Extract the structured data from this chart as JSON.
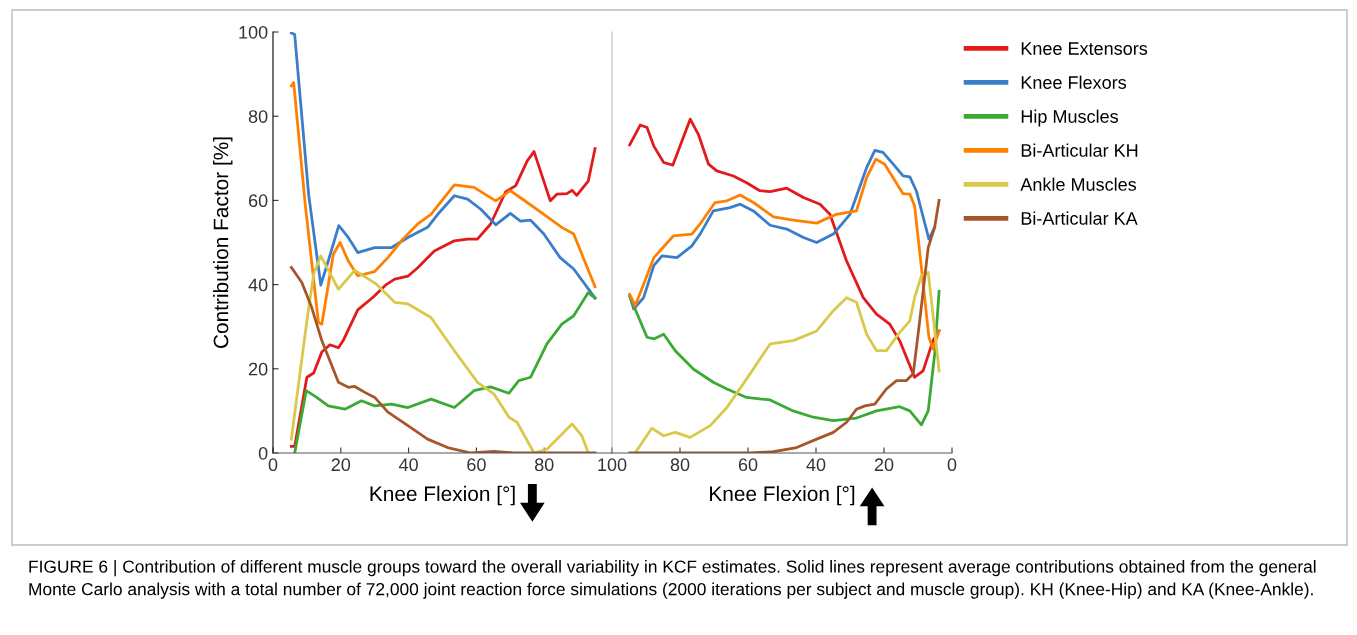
{
  "chart_data": [
    {
      "type": "line",
      "ylabel": "Contribution Factor [%]",
      "xlabel": "Knee Flexion [°]",
      "xlim": [
        0,
        100
      ],
      "xticks": [
        0,
        20,
        40,
        60,
        80,
        100
      ],
      "ylim": [
        0,
        100
      ],
      "yticks": [
        0,
        20,
        40,
        60,
        80,
        100
      ],
      "grid": false,
      "legend": "right",
      "marker": "none",
      "line_style": "solid",
      "annotations": [
        "FIGURE 6 | Contribution of different muscle groups toward the overall variability in KCF estimates. Solid lines represent average contributions obtained from the general Monte Carlo analysis with a total number of 72,000 joint reaction force simulations (2000 iterations per subject and muscle group). KH (Knee-Hip) and KA (Knee-Ankle)."
      ],
      "series": [
        {
          "name": "Knee Extensors",
          "color": "#e31a1c",
          "x": [
            5.4,
            6.4,
            10,
            12,
            14.4,
            16.8,
            19.3,
            20.7,
            25,
            29.5,
            33.4,
            35.9,
            39.8,
            42.7,
            47.6,
            53.5,
            57.4,
            60.3,
            64.2,
            68.6,
            71.6,
            75,
            77,
            81.8,
            83.8,
            86.7,
            88.2,
            89.6,
            93,
            95
          ],
          "values": [
            1.6,
            1.6,
            18,
            19,
            24,
            25.7,
            25,
            26.7,
            34,
            37,
            40,
            41.3,
            42,
            44,
            48,
            50.4,
            50.8,
            50.8,
            54.4,
            62,
            63.5,
            69.4,
            71.6,
            59.9,
            61.5,
            61.6,
            62.4,
            61.2,
            64.6,
            72.3
          ]
        },
        {
          "name": "Knee Flexors",
          "color": "#3a7dc9",
          "x": [
            5.4,
            6.4,
            10.5,
            14.1,
            16.3,
            19.4,
            22.2,
            25,
            30,
            35,
            39.8,
            45.6,
            48.6,
            53.5,
            57.4,
            61.3,
            65.7,
            70,
            73,
            76,
            79.9,
            84.7,
            88.7,
            95
          ],
          "values": [
            99.8,
            99.4,
            61.5,
            39.9,
            45.6,
            54,
            51.2,
            47.6,
            48.8,
            48.8,
            51.2,
            53.6,
            56.7,
            61.1,
            60.3,
            57.9,
            54.2,
            56.9,
            55.1,
            55.3,
            52,
            46.4,
            43.7,
            36.8
          ]
        },
        {
          "name": "Hip Muscles",
          "color": "#3aaa35",
          "x": [
            6.4,
            9.8,
            12.9,
            16.3,
            21.2,
            26.1,
            30,
            35,
            39.8,
            46.6,
            53.5,
            59.3,
            64.2,
            69.6,
            72.5,
            76,
            80.8,
            85.2,
            88.7,
            93,
            95
          ],
          "values": [
            0,
            14.8,
            13.2,
            11.2,
            10.4,
            12.4,
            11.2,
            11.6,
            10.8,
            12.8,
            10.8,
            14.8,
            15.7,
            14.2,
            17.2,
            18,
            25.9,
            30.6,
            32.6,
            38.1,
            36.8
          ]
        },
        {
          "name": "Bi-Articular KH",
          "color": "#ff8000",
          "x": [
            5.4,
            6.1,
            9.5,
            13.4,
            14.4,
            17.8,
            19.8,
            22.2,
            25,
            30,
            33.9,
            38.3,
            42.7,
            46.6,
            53.5,
            59.3,
            65.7,
            70,
            75,
            79.9,
            85.2,
            88.7,
            95
          ],
          "values": [
            87.2,
            88,
            59.1,
            31,
            30.6,
            47.2,
            50,
            45.6,
            42.1,
            43.1,
            46.4,
            50.8,
            54.4,
            56.7,
            63.7,
            63.1,
            59.9,
            62.3,
            59.5,
            56.7,
            53.6,
            52,
            39.5
          ]
        },
        {
          "name": "Ankle Muscles",
          "color": "#d9c94a",
          "x": [
            5.4,
            10,
            12,
            14.1,
            19.3,
            24.1,
            30.5,
            35.9,
            39.8,
            46.6,
            53.5,
            60.3,
            65.2,
            69.6,
            72,
            77,
            80.8,
            88.2,
            91.1,
            93
          ],
          "values": [
            3.3,
            31.4,
            42.5,
            46.8,
            38.9,
            43.4,
            40.1,
            35.8,
            35.4,
            32.2,
            24.3,
            16.8,
            14,
            8.5,
            7.3,
            0,
            0.9,
            6.9,
            4.1,
            0
          ]
        },
        {
          "name": "Bi-Articular KA",
          "color": "#a65628",
          "x": [
            5.4,
            8.5,
            11.4,
            14.4,
            19.3,
            22.2,
            24.1,
            27.1,
            30,
            33.9,
            39.8,
            45.6,
            51.5,
            58.4,
            65.2,
            71,
            95
          ],
          "values": [
            44.1,
            40.5,
            34.6,
            26.7,
            16.8,
            15.6,
            15.8,
            14.4,
            13.2,
            9.7,
            6.5,
            3.3,
            1.3,
            0,
            0.4,
            0,
            0
          ]
        }
      ]
    },
    {
      "type": "line",
      "xlabel": "Knee Flexion [°]",
      "xlim": [
        100,
        0
      ],
      "xticks": [
        {
          "value": 100,
          "label": null
        },
        80,
        60,
        40,
        20,
        0
      ],
      "ylim": [
        0,
        100
      ],
      "tick_labels": "x",
      "grid": false,
      "marker": "none",
      "line_style": "solid",
      "series": [
        {
          "color": "#e31a1c",
          "x": [
            94.8,
            91.7,
            89.7,
            87.7,
            84.8,
            82.1,
            77,
            74.6,
            71.6,
            69.2,
            64.3,
            60.4,
            56.5,
            53.5,
            48.6,
            43.7,
            38.8,
            35.9,
            31,
            26.1,
            22.2,
            18.3,
            15.4,
            11,
            8.5,
            5.6,
            3.8
          ],
          "values": [
            73.2,
            77.9,
            77.3,
            72.9,
            69,
            68.4,
            79.3,
            75.7,
            68.6,
            67,
            65.8,
            64.2,
            62.3,
            62.1,
            62.9,
            60.7,
            59.1,
            56.7,
            45.6,
            36.9,
            33,
            30.6,
            26.7,
            18,
            19.5,
            26.7,
            29
          ]
        },
        {
          "color": "#3a7dc9",
          "x": [
            94.8,
            93.6,
            90.7,
            87.7,
            85.3,
            80.9,
            76.5,
            74.1,
            70.2,
            65.3,
            62.3,
            58.4,
            53.5,
            48.6,
            43.7,
            39.8,
            34.9,
            30,
            25.1,
            22.7,
            20.3,
            17.3,
            14.4,
            12.4,
            10.5,
            6.8,
            5.1
          ],
          "values": [
            37.3,
            34.2,
            36.9,
            44.5,
            46.8,
            46.4,
            49.2,
            52,
            57.5,
            58.3,
            59.1,
            57.5,
            54.1,
            53.2,
            51.2,
            50,
            52,
            56.7,
            67.8,
            71.9,
            71.4,
            68.6,
            65.8,
            65.6,
            62.3,
            50.8,
            53.6
          ]
        },
        {
          "color": "#3aaa35",
          "x": [
            94.8,
            93.2,
            89.7,
            87.7,
            84.8,
            81.4,
            76,
            70.2,
            66.2,
            60.4,
            53.5,
            46.7,
            40.8,
            34.9,
            28.1,
            22.2,
            15.4,
            12.4,
            9,
            7,
            5.1,
            3.8
          ],
          "values": [
            37.3,
            34.2,
            27.5,
            27.1,
            28.2,
            24.3,
            19.9,
            16.8,
            15.2,
            13.2,
            12.6,
            10,
            8.5,
            7.7,
            8.3,
            10,
            11,
            10,
            6.7,
            10,
            23.5,
            38.4
          ]
        },
        {
          "color": "#ff8000",
          "x": [
            94.8,
            93.2,
            90.7,
            87.7,
            81.9,
            76.5,
            74.1,
            69.7,
            66.2,
            62.3,
            58.4,
            52.5,
            46.7,
            39.8,
            34,
            28.1,
            25.1,
            22.4,
            19.8,
            14.4,
            12.4,
            11,
            9,
            6.8,
            5.6,
            3.8
          ],
          "values": [
            37.7,
            35,
            40.1,
            46.4,
            51.6,
            52,
            54.4,
            59.5,
            59.9,
            61.3,
            59.5,
            56.1,
            55.3,
            54.6,
            56.7,
            57.5,
            65.4,
            69.8,
            68.6,
            61.6,
            61.5,
            58.7,
            44.1,
            27.5,
            24.7,
            29
          ]
        },
        {
          "color": "#d9c94a",
          "x": [
            93.2,
            88.3,
            84.8,
            81.4,
            77,
            71.1,
            66.2,
            60.4,
            53.5,
            46.7,
            39.8,
            34.9,
            31,
            28.1,
            25.1,
            22.2,
            19.3,
            15.4,
            12.4,
            11,
            9,
            7,
            5.6,
            3.8
          ],
          "values": [
            0,
            5.9,
            4.1,
            4.9,
            3.7,
            6.5,
            10.8,
            17.6,
            25.9,
            26.7,
            29,
            33.8,
            36.9,
            35.8,
            28.2,
            24.3,
            24.3,
            28.6,
            31.4,
            36.9,
            42.1,
            42.9,
            33,
            19.5
          ]
        },
        {
          "color": "#a65628",
          "x": [
            94.8,
            59.4,
            52.5,
            45.7,
            39.8,
            34.9,
            31,
            28.1,
            25.6,
            22.7,
            19.3,
            16.3,
            13.4,
            11.4,
            9.5,
            7,
            5.1,
            3.8
          ],
          "values": [
            0,
            0,
            0.3,
            1.3,
            3.3,
            4.9,
            7.3,
            10.4,
            11.2,
            11.6,
            15.2,
            17.2,
            17.2,
            18.8,
            31.4,
            48.8,
            53.6,
            60
          ]
        }
      ]
    }
  ]
}
